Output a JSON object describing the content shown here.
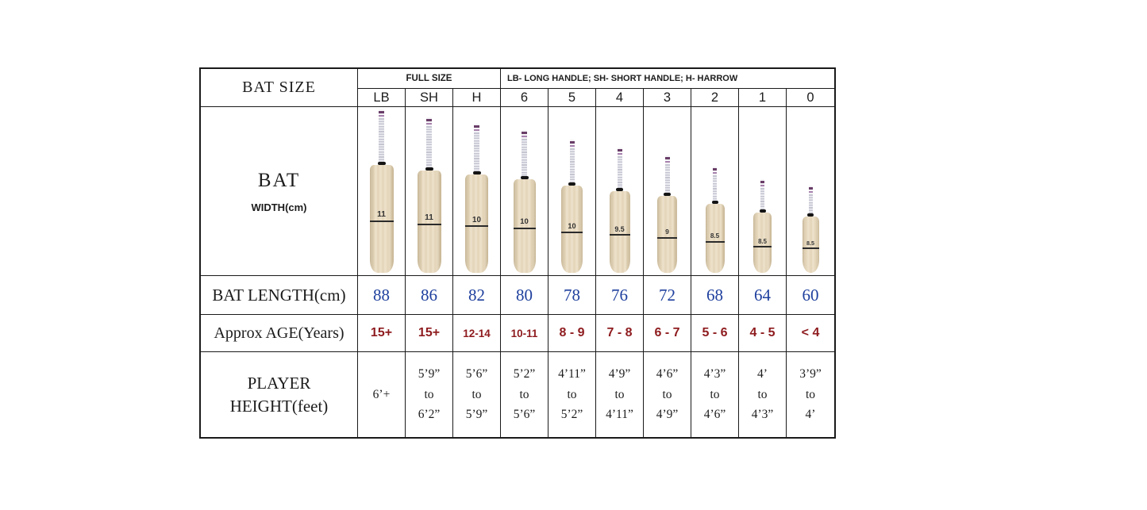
{
  "page": {
    "background": "#ffffff",
    "border_color": "#1a1a1a"
  },
  "table": {
    "corner_label": "BAT SIZE",
    "full_size_label": "FULL SIZE",
    "legend": "LB- LONG HANDLE; SH- SHORT HANDLE; H- HARROW",
    "columns": [
      "LB",
      "SH",
      "H",
      "6",
      "5",
      "4",
      "3",
      "2",
      "1",
      "0"
    ],
    "bat_row": {
      "title": "BAT",
      "subtitle": "WIDTH(cm)",
      "widths": [
        "11",
        "11",
        "10",
        "10",
        "10",
        "9.5",
        "9",
        "8.5",
        "8.5",
        "8.5"
      ],
      "blade_color": "#e9dcc4",
      "grip_band_colors": [
        "#693d67",
        "#a883ae"
      ]
    },
    "length_row": {
      "label": "BAT LENGTH(cm)",
      "values": [
        "88",
        "86",
        "82",
        "80",
        "78",
        "76",
        "72",
        "68",
        "64",
        "60"
      ],
      "color": "#1e3f9d"
    },
    "age_row": {
      "label": "Approx AGE(Years)",
      "values": [
        "15+",
        "15+",
        "12-14",
        "10-11",
        "8 - 9",
        "7 - 8",
        "6 - 7",
        "5 - 6",
        "4 - 5",
        "< 4"
      ],
      "color": "#8e1b1e"
    },
    "height_row": {
      "label_line1": "PLAYER",
      "label_line2": "HEIGHT(feet)",
      "values": [
        [
          "6’+"
        ],
        [
          "5’9”",
          "to",
          "6’2”"
        ],
        [
          "5’6”",
          "to",
          "5’9”"
        ],
        [
          "5’2”",
          "to",
          "5’6”"
        ],
        [
          "4’11”",
          "to",
          "5’2”"
        ],
        [
          "4’9”",
          "to",
          "4’11”"
        ],
        [
          "4’6”",
          "to",
          "4’9”"
        ],
        [
          "4’3”",
          "to",
          "4’6”"
        ],
        [
          "4’",
          "to",
          "4’3”"
        ],
        [
          "3’9”",
          "to",
          "4’"
        ]
      ]
    }
  },
  "chart_data": {
    "type": "table",
    "title": "Cricket Bat Size Chart",
    "columns": [
      "LB",
      "SH",
      "H",
      "6",
      "5",
      "4",
      "3",
      "2",
      "1",
      "0"
    ],
    "rows": [
      {
        "label": "BAT WIDTH(cm)",
        "values": [
          11,
          11,
          10,
          10,
          10,
          9.5,
          9,
          8.5,
          8.5,
          8.5
        ]
      },
      {
        "label": "BAT LENGTH(cm)",
        "values": [
          88,
          86,
          82,
          80,
          78,
          76,
          72,
          68,
          64,
          60
        ]
      },
      {
        "label": "Approx AGE(Years)",
        "values": [
          "15+",
          "15+",
          "12-14",
          "10-11",
          "8 - 9",
          "7 - 8",
          "6 - 7",
          "5 - 6",
          "4 - 5",
          "< 4"
        ]
      },
      {
        "label": "PLAYER HEIGHT(feet)",
        "values": [
          "6’+",
          "5’9” to 6’2”",
          "5’6” to 5’9”",
          "5’2” to 5’6”",
          "4’11” to 5’2”",
          "4’9” to 4’11”",
          "4’6” to 4’9”",
          "4’3” to 4’6”",
          "4’ to 4’3”",
          "3’9” to 4’"
        ]
      }
    ]
  }
}
